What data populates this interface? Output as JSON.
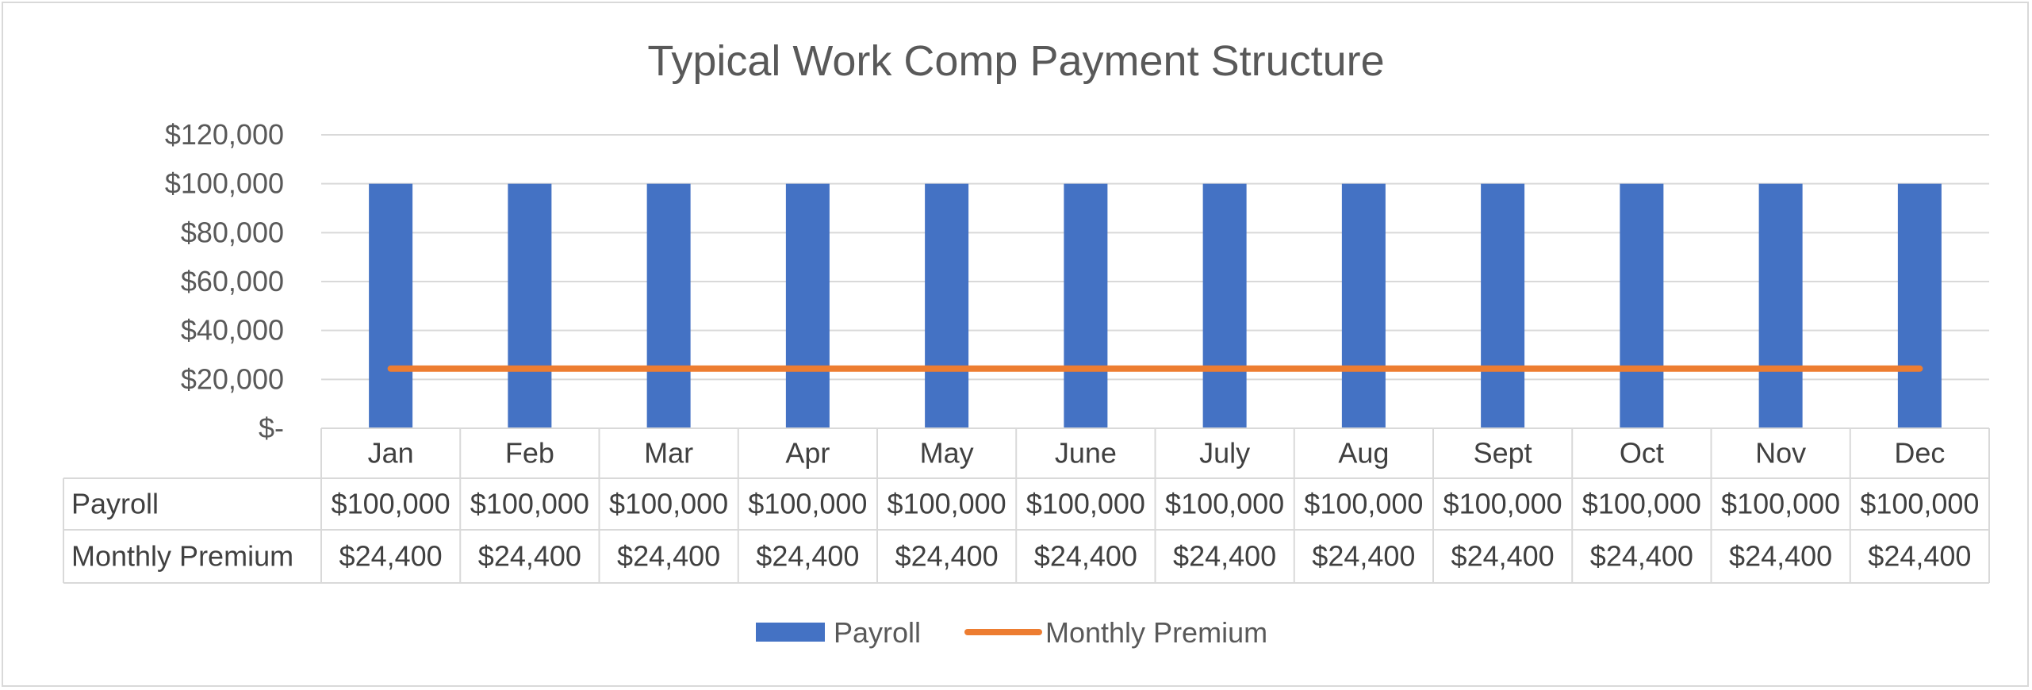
{
  "chart_data": {
    "type": "bar",
    "title": "Typical Work Comp Payment Structure",
    "categories": [
      "Jan",
      "Feb",
      "Mar",
      "Apr",
      "May",
      "June",
      "July",
      "Aug",
      "Sept",
      "Oct",
      "Nov",
      "Dec"
    ],
    "series": [
      {
        "name": "Payroll",
        "type": "bar",
        "color": "#4472c4",
        "values": [
          100000,
          100000,
          100000,
          100000,
          100000,
          100000,
          100000,
          100000,
          100000,
          100000,
          100000,
          100000
        ],
        "labels": [
          "$100,000",
          "$100,000",
          "$100,000",
          "$100,000",
          "$100,000",
          "$100,000",
          "$100,000",
          "$100,000",
          "$100,000",
          "$100,000",
          "$100,000",
          "$100,000"
        ]
      },
      {
        "name": "Monthly Premium",
        "type": "line",
        "color": "#ed7d31",
        "values": [
          24400,
          24400,
          24400,
          24400,
          24400,
          24400,
          24400,
          24400,
          24400,
          24400,
          24400,
          24400
        ],
        "labels": [
          "$24,400",
          "$24,400",
          "$24,400",
          "$24,400",
          "$24,400",
          "$24,400",
          "$24,400",
          "$24,400",
          "$24,400",
          "$24,400",
          "$24,400",
          "$24,400"
        ]
      }
    ],
    "ylim": [
      0,
      120000
    ],
    "yticks": [
      0,
      20000,
      40000,
      60000,
      80000,
      100000,
      120000
    ],
    "ytick_labels": [
      "$-",
      "$20,000",
      "$40,000",
      "$60,000",
      "$80,000",
      "$100,000",
      "$120,000"
    ],
    "grid": true,
    "data_table": true,
    "legend_position": "bottom"
  }
}
